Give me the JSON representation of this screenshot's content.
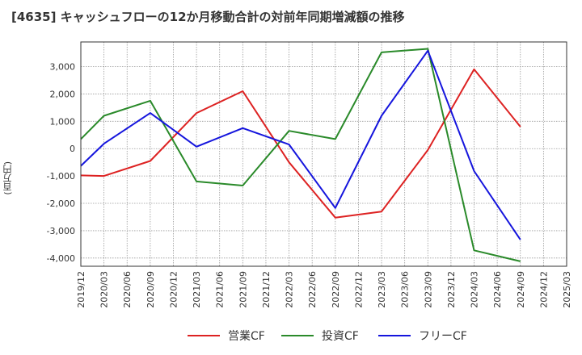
{
  "title": "[4635]  キャッシュフローの12か月移動合計の対前年同期増減額の推移",
  "chart_data": {
    "type": "line",
    "title": "[4635]  キャッシュフローの12か月移動合計の対前年同期増減額の推移",
    "xlabel": "",
    "ylabel": "(百万円)",
    "ylim": [
      -4300,
      3900
    ],
    "yticks": [
      3000,
      2000,
      1000,
      0,
      -1000,
      -2000,
      -3000,
      -4000
    ],
    "ytick_labels": [
      "3,000",
      "2,000",
      "1,000",
      "0",
      "-1,000",
      "-2,000",
      "-3,000",
      "-4,000"
    ],
    "x_labels": [
      "2019/12",
      "2020/03",
      "2020/06",
      "2020/09",
      "2020/12",
      "2021/03",
      "2021/06",
      "2021/09",
      "2021/12",
      "2022/03",
      "2022/06",
      "2022/09",
      "2022/12",
      "2023/03",
      "2023/06",
      "2023/09",
      "2023/12",
      "2024/03",
      "2024/06",
      "2024/09",
      "2024/12",
      "2025/03"
    ],
    "grid": true,
    "legend_position": "bottom",
    "series": [
      {
        "name": "営業CF",
        "color": "#dd2222",
        "values": [
          -980,
          -1000,
          null,
          -450,
          null,
          1300,
          null,
          2100,
          null,
          -500,
          null,
          -2520,
          null,
          -2300,
          null,
          -50,
          null,
          2900,
          null,
          800,
          null,
          null
        ]
      },
      {
        "name": "投資CF",
        "color": "#2a8a2a",
        "values": [
          350,
          1200,
          null,
          1750,
          null,
          -1200,
          null,
          -1350,
          null,
          650,
          null,
          350,
          null,
          3520,
          null,
          3650,
          null,
          -3720,
          null,
          -4120,
          null,
          null
        ]
      },
      {
        "name": "フリーCF",
        "color": "#1515dd",
        "values": [
          -630,
          180,
          null,
          1300,
          null,
          70,
          null,
          750,
          null,
          150,
          null,
          -2170,
          null,
          1200,
          null,
          3580,
          null,
          -820,
          null,
          -3330,
          null,
          null
        ]
      }
    ]
  }
}
